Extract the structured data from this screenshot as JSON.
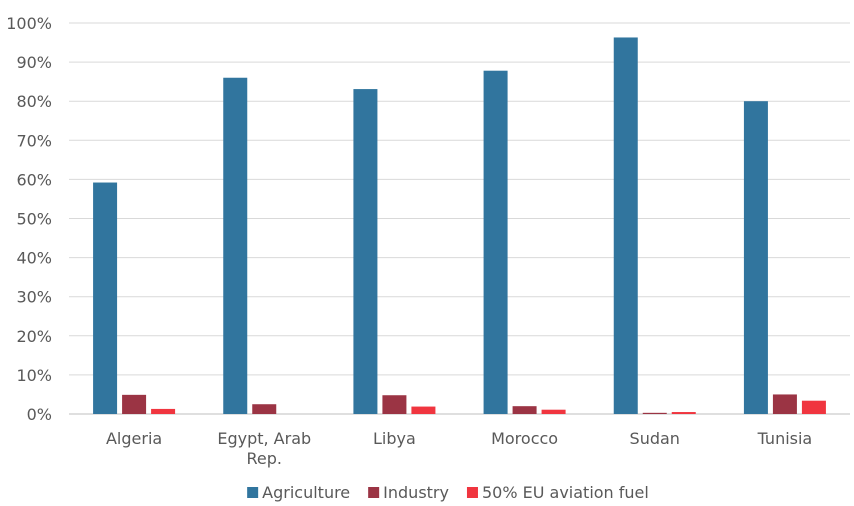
{
  "chart_data": {
    "type": "bar",
    "title": "",
    "xlabel": "",
    "ylabel": "",
    "ylim": [
      0,
      100
    ],
    "yticks": [
      "0%",
      "10%",
      "20%",
      "30%",
      "40%",
      "50%",
      "60%",
      "70%",
      "80%",
      "90%",
      "100%"
    ],
    "categories": [
      [
        "Algeria"
      ],
      [
        "Egypt, Arab",
        "Rep."
      ],
      [
        "Libya"
      ],
      [
        "Morocco"
      ],
      [
        "Sudan"
      ],
      [
        "Tunisia"
      ]
    ],
    "series": [
      {
        "name": "Agriculture",
        "color": "#31759e",
        "values": [
          59.2,
          86,
          83.1,
          87.8,
          96.3,
          80
        ]
      },
      {
        "name": "Industry",
        "color": "#9b3444",
        "values": [
          4.9,
          2.5,
          4.8,
          2.0,
          0.3,
          5.0
        ]
      },
      {
        "name": "50% EU aviation fuel",
        "color": "#f0353f",
        "values": [
          1.3,
          0,
          1.9,
          1.1,
          0.5,
          3.4
        ]
      }
    ],
    "grid": true,
    "legend_position": "bottom"
  }
}
